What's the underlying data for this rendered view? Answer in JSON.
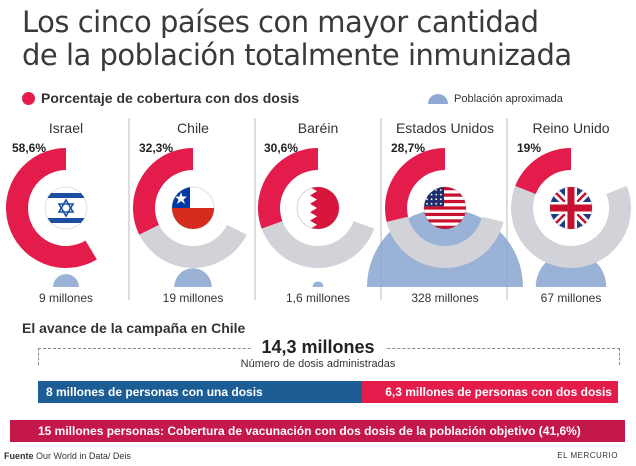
{
  "title": {
    "line1": "Los cinco países con mayor cantidad",
    "line2": "de la población totalmente inmunizada"
  },
  "legend": {
    "coverage": "Porcentaje de cobertura con dos dosis",
    "population": "Población aproximada"
  },
  "colors": {
    "coverage": "#e31c4c",
    "remainder": "#d2d3d8",
    "population": "#8eaad2",
    "bar_one_dose": "#1c5d96",
    "bar_two_doses": "#e31c4c",
    "bar_objective": "#c4174a"
  },
  "chart_data": {
    "type": "pie",
    "title": "Los cinco países con mayor cantidad de la población totalmente inmunizada",
    "series_name": "Porcentaje de cobertura con dos dosis",
    "categories": [
      "Israel",
      "Chile",
      "Baréin",
      "Estados Unidos",
      "Reino Unido"
    ],
    "values": [
      58.6,
      32.3,
      30.6,
      28.7,
      19
    ],
    "value_labels": [
      "58,6%",
      "32,3%",
      "30,6%",
      "28,7%",
      "19%"
    ],
    "population_millions": [
      9,
      19,
      1.6,
      328,
      67
    ],
    "population_labels": [
      "9 millones",
      "19 millones",
      "1,6 millones",
      "328 millones",
      "67 millones"
    ],
    "flags": [
      "israel-flag-icon",
      "chile-flag-icon",
      "bahrain-flag-icon",
      "usa-flag-icon",
      "uk-flag-icon"
    ]
  },
  "chile": {
    "section_title": "El avance de la campaña en Chile",
    "total_label": "14,3 millones",
    "total_sub": "Número de dosis administradas",
    "one_dose_value": 8,
    "two_doses_value": 6.3,
    "one_dose_label": "8 millones de personas con una dosis",
    "two_doses_label": "6,3 millones de personas con dos dosis",
    "objective_label": "15 millones personas: Cobertura de vacunación con dos dosis de la población objetivo (41,6%)"
  },
  "footer": {
    "source_label": "Fuente",
    "source_text": "Our World in Data/ Deis",
    "brand": "EL MERCURIO"
  }
}
